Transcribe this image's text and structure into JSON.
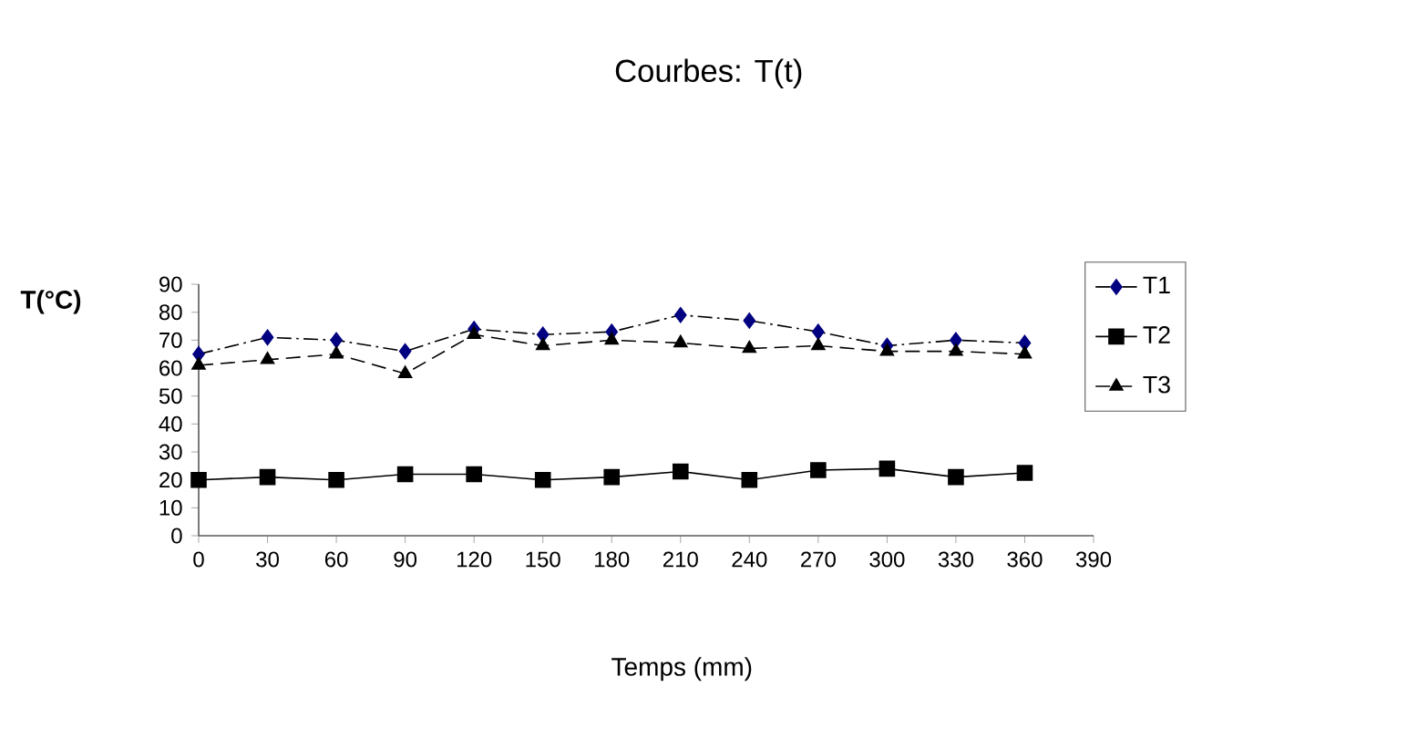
{
  "chart_data": {
    "type": "line",
    "title": "Courbes: T(t)",
    "xlabel": "Temps (mm)",
    "ylabel": "T(°C)",
    "x": [
      0,
      30,
      60,
      90,
      120,
      150,
      180,
      210,
      240,
      270,
      300,
      330,
      360
    ],
    "xlim": [
      0,
      390
    ],
    "xticks": [
      0,
      30,
      60,
      90,
      120,
      150,
      180,
      210,
      240,
      270,
      300,
      330,
      360,
      390
    ],
    "ylim": [
      0,
      90
    ],
    "yticks": [
      0,
      10,
      20,
      30,
      40,
      50,
      60,
      70,
      80,
      90
    ],
    "grid": false,
    "legend": "right",
    "series": [
      {
        "name": "T1",
        "color": "#000080",
        "marker": "diamond",
        "line_style": "dashdot",
        "values": [
          65,
          71,
          70,
          66,
          74,
          72,
          73,
          79,
          77,
          73,
          68,
          70,
          69
        ]
      },
      {
        "name": "T2",
        "color": "#000000",
        "marker": "square",
        "line_style": "solid",
        "values": [
          20,
          21,
          20,
          22,
          22,
          20,
          21,
          23,
          20,
          23.5,
          24,
          21,
          22.5
        ]
      },
      {
        "name": "T3",
        "color": "#000000",
        "marker": "triangle",
        "line_style": "dashed",
        "values": [
          61,
          63,
          65,
          58,
          72,
          68,
          70,
          69,
          67,
          68,
          66,
          66,
          65
        ]
      }
    ]
  }
}
